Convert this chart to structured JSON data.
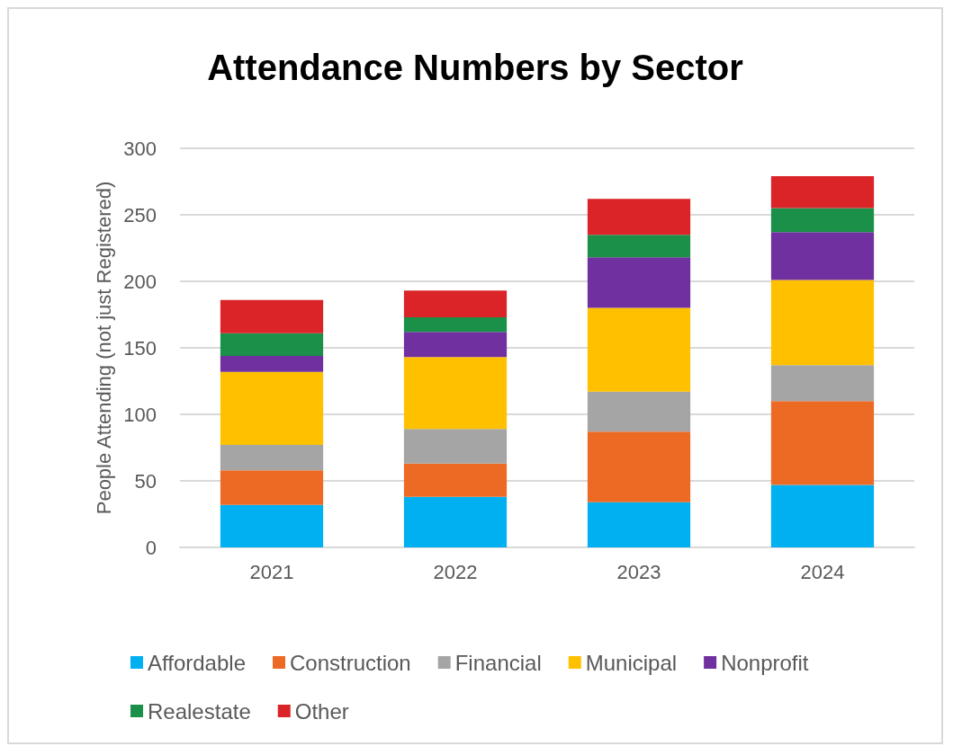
{
  "chart_data": {
    "type": "bar",
    "title": "Attendance Numbers by Sector",
    "ylabel": "People Attending (not just Registered)",
    "categories": [
      "2021",
      "2022",
      "2023",
      "2024"
    ],
    "stacked": true,
    "series": [
      {
        "name": "Affordable",
        "color": "#00b0f0",
        "values": [
          32,
          38,
          34,
          47
        ]
      },
      {
        "name": "Construction",
        "color": "#ed6a25",
        "values": [
          26,
          25,
          53,
          63
        ]
      },
      {
        "name": "Financial",
        "color": "#a5a5a5",
        "values": [
          19,
          26,
          30,
          27
        ]
      },
      {
        "name": "Municipal",
        "color": "#ffc000",
        "values": [
          55,
          54,
          63,
          64
        ]
      },
      {
        "name": "Nonprofit",
        "color": "#7030a0",
        "values": [
          12,
          19,
          38,
          36
        ]
      },
      {
        "name": "Realestate",
        "color": "#1a9049",
        "values": [
          17,
          11,
          17,
          18
        ]
      },
      {
        "name": "Other",
        "color": "#da2428",
        "values": [
          25,
          20,
          27,
          24
        ]
      }
    ],
    "ylim": [
      0,
      300
    ],
    "yticks": [
      0,
      50,
      100,
      150,
      200,
      250,
      300
    ],
    "grid": "y",
    "legend": "bottom"
  }
}
